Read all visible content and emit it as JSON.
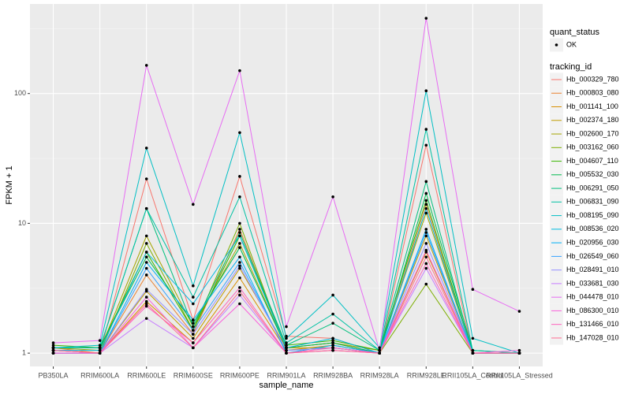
{
  "chart_data": {
    "type": "line",
    "log_y": true,
    "grid": true,
    "x_label": "sample_name",
    "y_label": "FPKM + 1",
    "categories": [
      "PB350LA",
      "RRIM600LA",
      "RRIM600LE",
      "RRIM600SE",
      "RRIM600PE",
      "RRIM901LA",
      "RRIM928BA",
      "RRIM928LA",
      "RRIM928LE",
      "RRII105LA_Control",
      "RRII105LA_Stressed"
    ],
    "ylim": [
      0.79,
      490
    ],
    "yticks": [
      1,
      10,
      100
    ],
    "point_legend": {
      "title": "quant_status",
      "entries": [
        "OK"
      ],
      "color": "#000000"
    },
    "legend_title": "tracking_id",
    "legend_position": "right",
    "series": [
      {
        "name": "Hb_000329_780",
        "color": "#F8766D",
        "values": [
          1.05,
          1.0,
          22,
          1.8,
          23,
          1.35,
          1.3,
          1.0,
          40,
          1.0,
          1.0
        ]
      },
      {
        "name": "Hb_000803_080",
        "color": "#EA8331",
        "values": [
          1.1,
          1.0,
          4.0,
          1.4,
          9,
          1.1,
          1.2,
          1.0,
          14,
          1.0,
          1.0
        ]
      },
      {
        "name": "Hb_001141_100",
        "color": "#D89000",
        "values": [
          1.0,
          1.0,
          2.5,
          1.2,
          3.8,
          1.05,
          1.15,
          1.0,
          6,
          1.0,
          1.0
        ]
      },
      {
        "name": "Hb_002374_180",
        "color": "#C09B00",
        "values": [
          1.05,
          1.0,
          3.0,
          1.3,
          4.5,
          1.1,
          1.1,
          1.0,
          8,
          1.0,
          1.0
        ]
      },
      {
        "name": "Hb_002600_170",
        "color": "#A3A500",
        "values": [
          1.1,
          1.05,
          8,
          1.6,
          7,
          1.1,
          1.2,
          1.05,
          12,
          1.0,
          1.0
        ]
      },
      {
        "name": "Hb_003162_060",
        "color": "#7CAE00",
        "values": [
          1.0,
          1.0,
          7,
          1.5,
          10,
          1.05,
          1.1,
          1.0,
          3.4,
          1.0,
          1.0
        ]
      },
      {
        "name": "Hb_004607_110",
        "color": "#39B600",
        "values": [
          1.15,
          1.1,
          6,
          1.5,
          8,
          1.15,
          1.25,
          1.05,
          15,
          1.0,
          1.0
        ]
      },
      {
        "name": "Hb_005532_030",
        "color": "#00BB4E",
        "values": [
          1.1,
          1.1,
          5.5,
          1.7,
          6.5,
          1.1,
          1.2,
          1.0,
          17,
          1.05,
          1.0
        ]
      },
      {
        "name": "Hb_006291_050",
        "color": "#00BF7D",
        "values": [
          1.1,
          1.1,
          13,
          1.6,
          8.5,
          1.15,
          1.7,
          1.05,
          21,
          1.0,
          1.0
        ]
      },
      {
        "name": "Hb_006831_090",
        "color": "#00C1A3",
        "values": [
          1.1,
          1.1,
          13,
          2.7,
          16,
          1.2,
          2.0,
          1.05,
          53,
          1.05,
          1.0
        ]
      },
      {
        "name": "Hb_008195_090",
        "color": "#00BFC4",
        "values": [
          1.1,
          1.15,
          38,
          3.3,
          50,
          1.3,
          2.8,
          1.1,
          105,
          1.3,
          1.0
        ]
      },
      {
        "name": "Hb_008536_020",
        "color": "#00BAE0",
        "values": [
          1.05,
          1.05,
          6,
          2.4,
          8,
          1.1,
          1.3,
          1.0,
          13,
          1.0,
          1.0
        ]
      },
      {
        "name": "Hb_020956_030",
        "color": "#00B0F6",
        "values": [
          1.0,
          1.0,
          5,
          1.8,
          5.5,
          1.0,
          1.15,
          1.0,
          9,
          1.0,
          1.0
        ]
      },
      {
        "name": "Hb_026549_060",
        "color": "#35A2FF",
        "values": [
          1.05,
          1.0,
          4.5,
          1.5,
          5,
          1.05,
          1.1,
          1.0,
          8.5,
          1.0,
          1.0
        ]
      },
      {
        "name": "Hb_028491_010",
        "color": "#9590FF",
        "values": [
          1.0,
          1.0,
          3.1,
          1.4,
          4.7,
          1.05,
          1.1,
          1.0,
          7,
          1.0,
          1.0
        ]
      },
      {
        "name": "Hb_033681_030",
        "color": "#C77CFF",
        "values": [
          1.0,
          1.0,
          1.85,
          1.1,
          2.8,
          1.0,
          1.05,
          1.0,
          4.5,
          1.0,
          1.0
        ]
      },
      {
        "name": "Hb_044478_010",
        "color": "#E76BF3",
        "values": [
          1.2,
          1.25,
          165,
          14,
          150,
          1.6,
          16,
          1.05,
          380,
          3.1,
          2.1
        ]
      },
      {
        "name": "Hb_086300_010",
        "color": "#FA62DB",
        "values": [
          1.0,
          1.0,
          2.7,
          1.1,
          2.4,
          1.0,
          1.05,
          1.0,
          6.2,
          1.0,
          1.05
        ]
      },
      {
        "name": "Hb_131466_010",
        "color": "#FF62BC",
        "values": [
          1.05,
          1.0,
          2.3,
          1.2,
          3.2,
          1.0,
          1.1,
          1.0,
          4.9,
          1.0,
          1.0
        ]
      },
      {
        "name": "Hb_147028_010",
        "color": "#FF6C91",
        "values": [
          1.05,
          1.0,
          2.4,
          1.1,
          3.0,
          1.0,
          1.05,
          1.0,
          5.5,
          1.0,
          1.0
        ]
      }
    ]
  }
}
